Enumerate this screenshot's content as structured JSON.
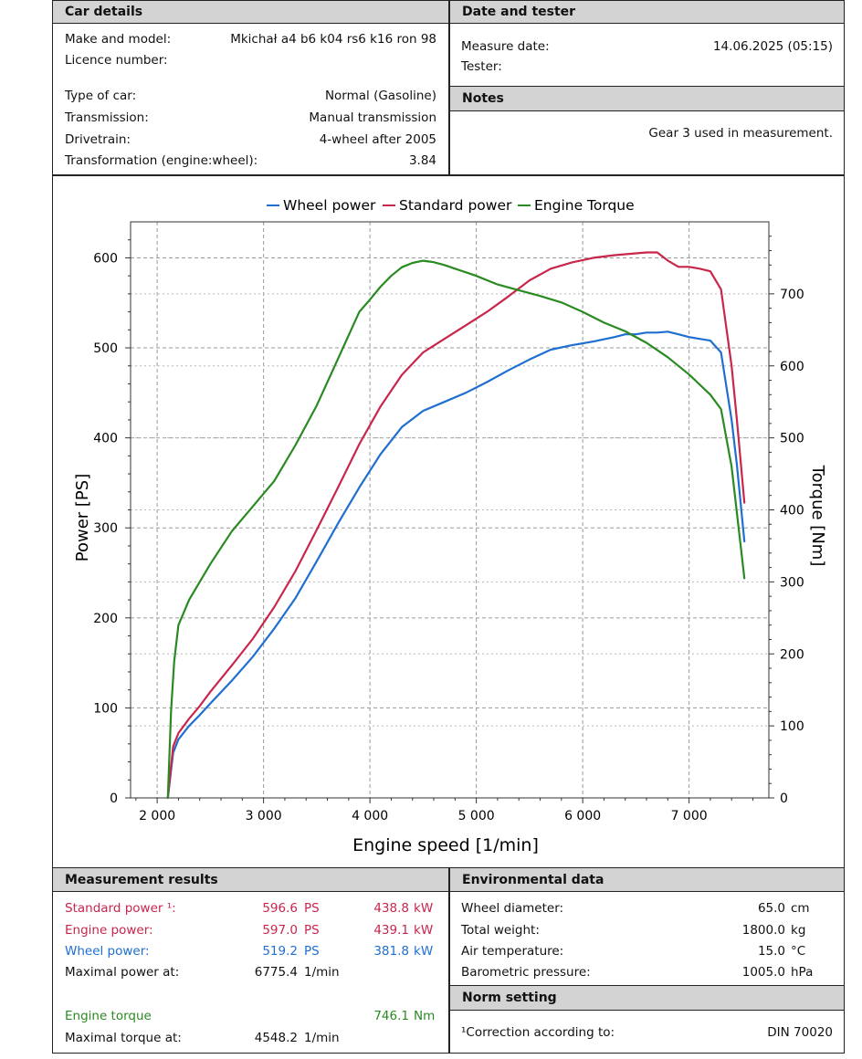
{
  "car_details": {
    "header": "Car details",
    "make_label": "Make and model:",
    "make_value": "Mkichał a4 b6 k04 rs6 k16 ron 98",
    "licence_label": "Licence number:",
    "type_label": "Type of car:",
    "type_value": "Normal (Gasoline)",
    "transmission_label": "Transmission:",
    "transmission_value": "Manual transmission",
    "drivetrain_label": "Drivetrain:",
    "drivetrain_value": "4-wheel after 2005",
    "transformation_label": "Transformation (engine:wheel):",
    "transformation_value": "3.84"
  },
  "date_tester": {
    "header": "Date and tester",
    "date_label": "Measure date:",
    "date_value": "14.06.2025 (05:15)",
    "tester_label": "Tester:"
  },
  "notes": {
    "header": "Notes",
    "text": "Gear 3 used in measurement."
  },
  "chart_data": {
    "type": "line",
    "legend": [
      "Wheel power",
      "Standard power",
      "Engine Torque"
    ],
    "legend_placement": "top-center",
    "xlabel": "Engine speed [1/min]",
    "ylabel": "Power [PS]",
    "y2label": "Torque [Nm]",
    "xlim": [
      1750,
      7750
    ],
    "ylim": [
      0,
      640
    ],
    "y2lim": [
      0,
      800
    ],
    "xticks": [
      "2 000",
      "3 000",
      "4 000",
      "5 000",
      "6 000",
      "7 000"
    ],
    "xtick_values": [
      2000,
      3000,
      4000,
      5000,
      6000,
      7000
    ],
    "yticks": [
      "0",
      "100",
      "200",
      "300",
      "400",
      "500",
      "600"
    ],
    "ytick_values": [
      0,
      100,
      200,
      300,
      400,
      500,
      600
    ],
    "y2ticks": [
      "0",
      "100",
      "200",
      "300",
      "400",
      "500",
      "600",
      "700"
    ],
    "y2tick_values": [
      0,
      100,
      200,
      300,
      400,
      500,
      600,
      700
    ],
    "grid": true,
    "colors": {
      "wheel": "#1f6fd1",
      "standard": "#c8264b",
      "torque": "#2a8a22"
    },
    "series": [
      {
        "name": "Wheel power",
        "axis": "left",
        "x": [
          2100,
          2150,
          2200,
          2300,
          2400,
          2500,
          2700,
          2900,
          3100,
          3300,
          3500,
          3700,
          3900,
          4100,
          4300,
          4500,
          4700,
          4900,
          5100,
          5300,
          5500,
          5700,
          5900,
          6100,
          6300,
          6400,
          6500,
          6600,
          6700,
          6800,
          6900,
          7000,
          7100,
          7200,
          7300,
          7400,
          7450,
          7520
        ],
        "y": [
          0,
          50,
          65,
          80,
          92,
          105,
          130,
          157,
          188,
          222,
          263,
          305,
          345,
          382,
          412,
          430,
          440,
          450,
          462,
          475,
          487,
          498,
          503,
          507,
          512,
          515,
          515,
          517,
          517,
          518,
          515,
          512,
          510,
          508,
          495,
          420,
          370,
          285
        ]
      },
      {
        "name": "Standard power",
        "axis": "left",
        "x": [
          2100,
          2150,
          2200,
          2300,
          2400,
          2500,
          2700,
          2900,
          3100,
          3300,
          3500,
          3700,
          3900,
          4100,
          4300,
          4500,
          4700,
          4900,
          5100,
          5300,
          5500,
          5700,
          5900,
          6100,
          6300,
          6400,
          6500,
          6600,
          6700,
          6800,
          6900,
          7000,
          7100,
          7200,
          7300,
          7400,
          7450,
          7520
        ],
        "y": [
          0,
          57,
          72,
          88,
          102,
          118,
          147,
          177,
          212,
          252,
          298,
          345,
          393,
          435,
          470,
          495,
          510,
          525,
          540,
          557,
          575,
          588,
          595,
          600,
          603,
          604,
          605,
          606,
          606,
          597,
          590,
          590,
          588,
          585,
          565,
          480,
          420,
          328
        ]
      },
      {
        "name": "Engine Torque",
        "axis": "right",
        "x": [
          2100,
          2130,
          2160,
          2200,
          2300,
          2400,
          2500,
          2700,
          2900,
          3100,
          3300,
          3500,
          3700,
          3900,
          4000,
          4100,
          4200,
          4300,
          4400,
          4500,
          4550,
          4600,
          4700,
          4800,
          4900,
          5000,
          5200,
          5400,
          5600,
          5800,
          6000,
          6200,
          6400,
          6600,
          6800,
          7000,
          7200,
          7300,
          7400,
          7520
        ],
        "y": [
          0,
          120,
          190,
          240,
          275,
          300,
          325,
          370,
          405,
          440,
          490,
          545,
          610,
          675,
          692,
          710,
          725,
          737,
          743,
          746,
          745,
          744,
          740,
          735,
          730,
          725,
          713,
          705,
          697,
          688,
          675,
          660,
          648,
          632,
          612,
          588,
          560,
          540,
          460,
          305
        ]
      }
    ]
  },
  "measurement": {
    "header": "Measurement results",
    "rows": [
      {
        "label": "Standard power ¹:",
        "ps": "596.6",
        "ps_unit": "PS",
        "kw": "438.8",
        "kw_unit": "kW"
      },
      {
        "label": "Engine power:",
        "ps": "597.0",
        "ps_unit": "PS",
        "kw": "439.1",
        "kw_unit": "kW"
      },
      {
        "label": "Wheel power:",
        "ps": "519.2",
        "ps_unit": "PS",
        "kw": "381.8",
        "kw_unit": "kW"
      }
    ],
    "max_power_label": "Maximal power at:",
    "max_power_value": "6775.4",
    "max_power_unit": "1/min",
    "torque_label": "Engine torque",
    "torque_value": "746.1",
    "torque_unit": "Nm",
    "max_torque_label": "Maximal torque at:",
    "max_torque_value": "4548.2",
    "max_torque_unit": "1/min"
  },
  "environment": {
    "header": "Environmental data",
    "rows": [
      {
        "label": "Wheel diameter:",
        "value": "65.0",
        "unit": "cm"
      },
      {
        "label": "Total weight:",
        "value": "1800.0",
        "unit": "kg"
      },
      {
        "label": "Air temperature:",
        "value": "15.0",
        "unit": "°C"
      },
      {
        "label": "Barometric pressure:",
        "value": "1005.0",
        "unit": "hPa"
      }
    ]
  },
  "norm": {
    "header": "Norm setting",
    "label": "¹Correction according to:",
    "value": "DIN 70020"
  }
}
